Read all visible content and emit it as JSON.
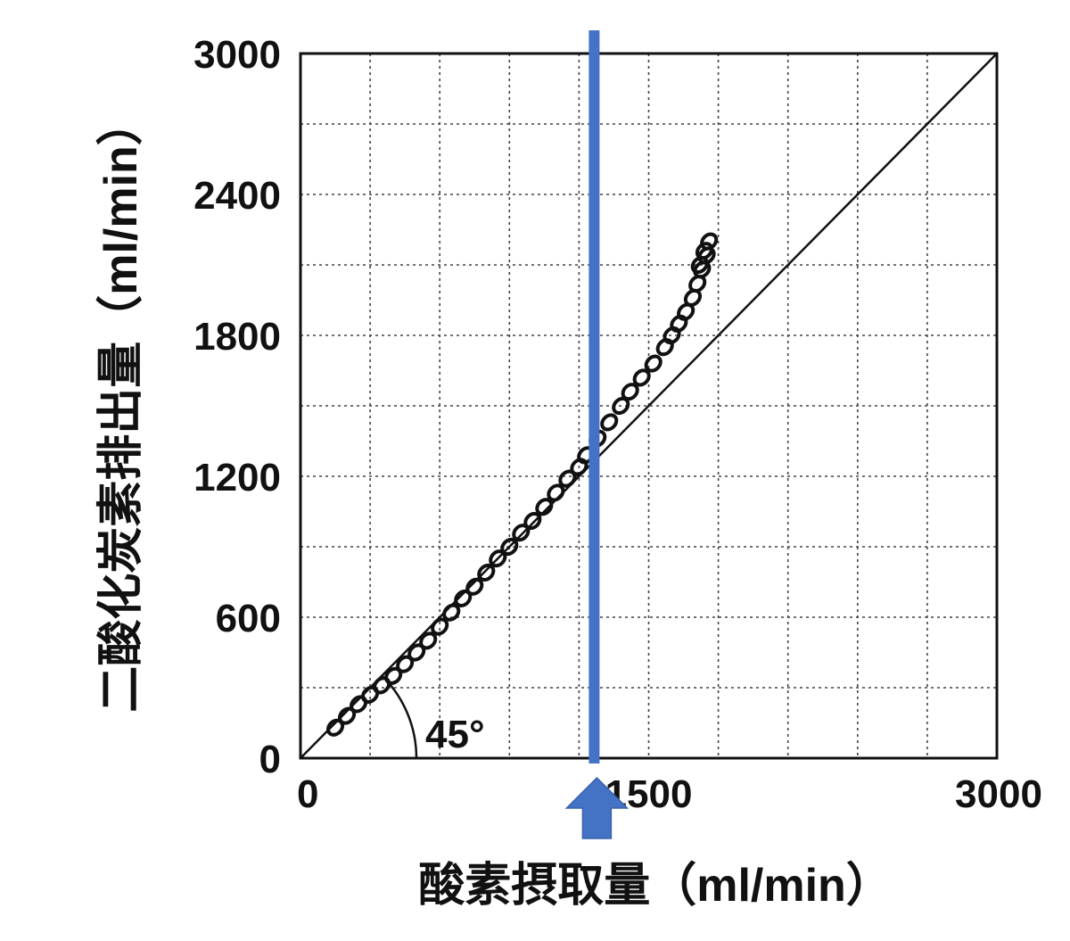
{
  "chart_data": {
    "type": "scatter",
    "title": "",
    "xlabel": "酸素摂取量（ml/min）",
    "ylabel": "二酸化炭素排出量（ml/min）",
    "xlim": [
      0,
      3000
    ],
    "ylim": [
      0,
      3000
    ],
    "x_tick_labels": [
      "0",
      "1500",
      "3000"
    ],
    "x_tick_values": [
      0,
      1500,
      3000
    ],
    "y_tick_labels": [
      "0",
      "600",
      "1200",
      "1800",
      "2400",
      "3000"
    ],
    "y_tick_values": [
      0,
      600,
      1200,
      1800,
      2400,
      3000
    ],
    "grid": true,
    "angle_label": "45°",
    "reference_line": {
      "x": [
        0,
        3000
      ],
      "y": [
        0,
        3000
      ]
    },
    "marker_line_x": 1200,
    "series": [
      {
        "x": [
          150,
          200,
          250,
          300,
          350,
          400,
          450,
          500,
          550,
          600,
          650,
          700,
          750,
          800,
          850,
          900,
          950,
          1000,
          1050,
          1100,
          1150,
          1200,
          1230,
          1280,
          1330,
          1380,
          1420,
          1470,
          1520,
          1570,
          1600,
          1630,
          1660,
          1690,
          1710,
          1730,
          1750,
          1760,
          1740,
          1720
        ],
        "y": [
          130,
          180,
          230,
          270,
          310,
          350,
          400,
          450,
          500,
          560,
          620,
          680,
          730,
          790,
          850,
          900,
          960,
          1010,
          1070,
          1130,
          1190,
          1240,
          1290,
          1360,
          1430,
          1500,
          1560,
          1620,
          1680,
          1750,
          1800,
          1850,
          1900,
          1960,
          2020,
          2080,
          2140,
          2200,
          2160,
          2100
        ]
      }
    ]
  }
}
